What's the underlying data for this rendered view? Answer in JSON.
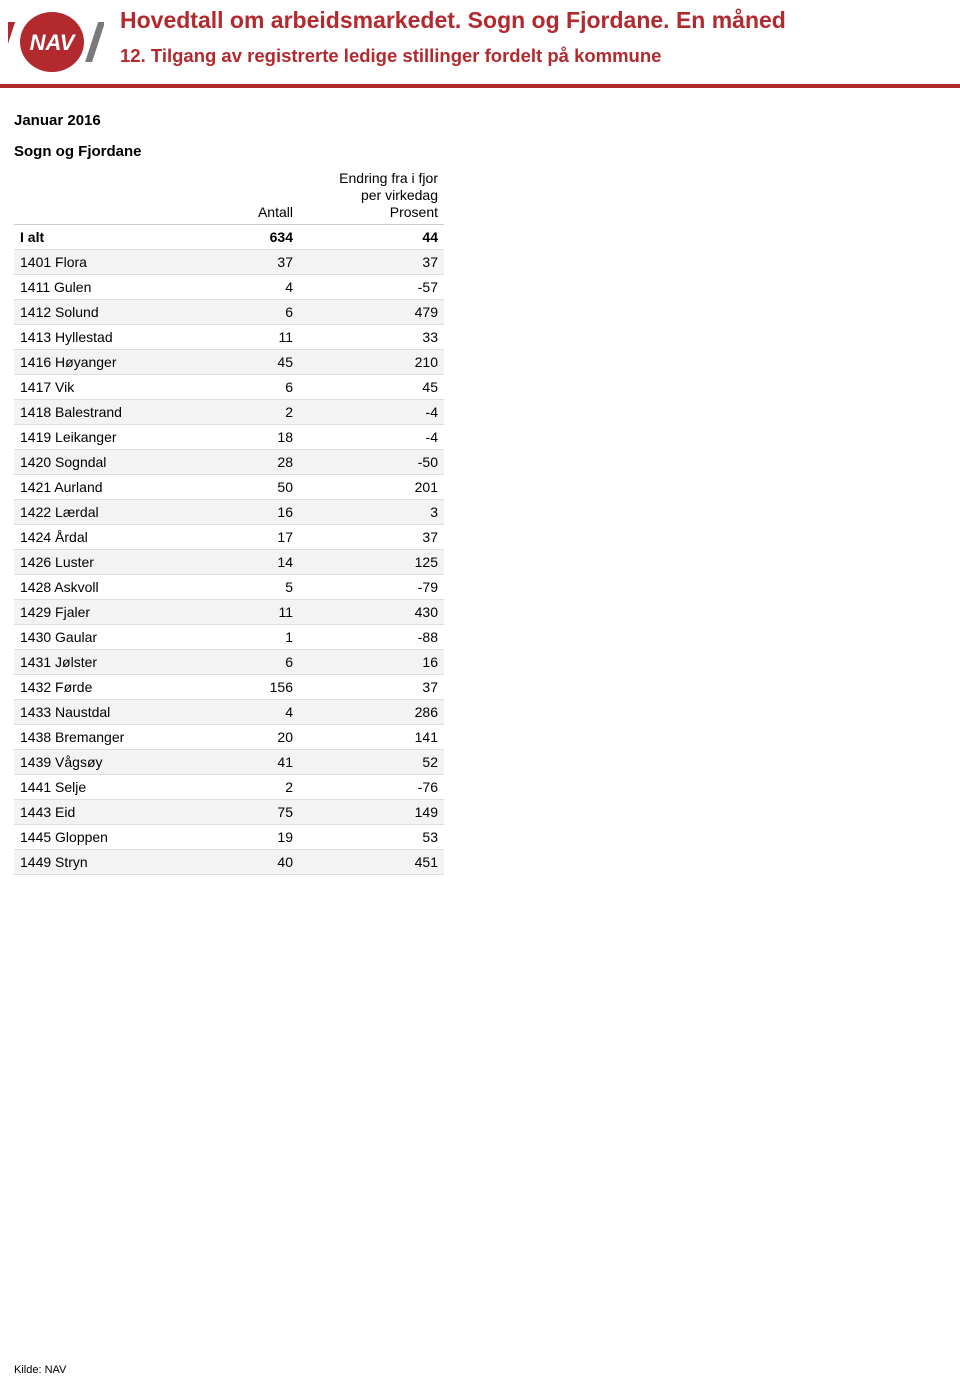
{
  "header": {
    "title": "Hovedtall om arbeidsmarkedet. Sogn og Fjordane. En måned",
    "subtitle": "12. Tilgang av registrerte ledige stillinger fordelt på kommune"
  },
  "logo": {
    "icon_label": "nav-logo",
    "bg_color": "#b2292e",
    "text_color": "#ffffff",
    "stripe_colors": [
      "#b2292e",
      "#7a7a7a"
    ]
  },
  "divider_color": "#b2292e",
  "period": "Januar 2016",
  "region": "Sogn og Fjordane",
  "table": {
    "col_label_blank": "",
    "col_antall": "Antall",
    "col_change": "Endring fra i fjor\nper virkedag\nProsent",
    "total": {
      "label": "I alt",
      "antall": "634",
      "prosent": "44"
    },
    "rows": [
      {
        "label": "1401 Flora",
        "antall": "37",
        "prosent": "37"
      },
      {
        "label": "1411 Gulen",
        "antall": "4",
        "prosent": "-57"
      },
      {
        "label": "1412 Solund",
        "antall": "6",
        "prosent": "479"
      },
      {
        "label": "1413 Hyllestad",
        "antall": "11",
        "prosent": "33"
      },
      {
        "label": "1416 Høyanger",
        "antall": "45",
        "prosent": "210"
      },
      {
        "label": "1417 Vik",
        "antall": "6",
        "prosent": "45"
      },
      {
        "label": "1418 Balestrand",
        "antall": "2",
        "prosent": "-4"
      },
      {
        "label": "1419 Leikanger",
        "antall": "18",
        "prosent": "-4"
      },
      {
        "label": "1420 Sogndal",
        "antall": "28",
        "prosent": "-50"
      },
      {
        "label": "1421 Aurland",
        "antall": "50",
        "prosent": "201"
      },
      {
        "label": "1422 Lærdal",
        "antall": "16",
        "prosent": "3"
      },
      {
        "label": "1424 Årdal",
        "antall": "17",
        "prosent": "37"
      },
      {
        "label": "1426 Luster",
        "antall": "14",
        "prosent": "125"
      },
      {
        "label": "1428 Askvoll",
        "antall": "5",
        "prosent": "-79"
      },
      {
        "label": "1429 Fjaler",
        "antall": "11",
        "prosent": "430"
      },
      {
        "label": "1430 Gaular",
        "antall": "1",
        "prosent": "-88"
      },
      {
        "label": "1431 Jølster",
        "antall": "6",
        "prosent": "16"
      },
      {
        "label": "1432 Førde",
        "antall": "156",
        "prosent": "37"
      },
      {
        "label": "1433 Naustdal",
        "antall": "4",
        "prosent": "286"
      },
      {
        "label": "1438 Bremanger",
        "antall": "20",
        "prosent": "141"
      },
      {
        "label": "1439 Vågsøy",
        "antall": "41",
        "prosent": "52"
      },
      {
        "label": "1441 Selje",
        "antall": "2",
        "prosent": "-76"
      },
      {
        "label": "1443 Eid",
        "antall": "75",
        "prosent": "149"
      },
      {
        "label": "1445 Gloppen",
        "antall": "19",
        "prosent": "53"
      },
      {
        "label": "1449 Stryn",
        "antall": "40",
        "prosent": "451"
      }
    ]
  },
  "footer": "Kilde: NAV"
}
